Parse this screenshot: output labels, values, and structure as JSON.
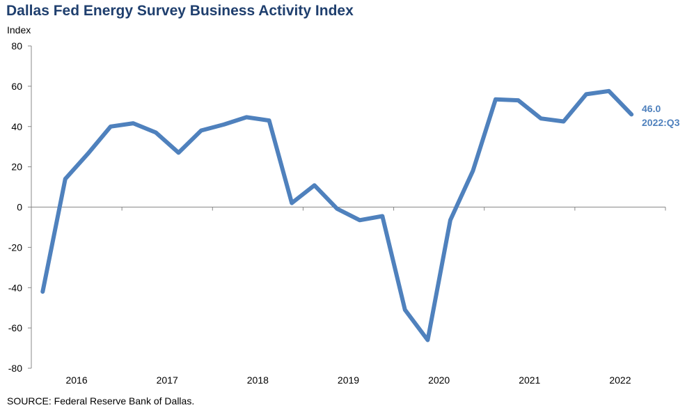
{
  "chart_data": {
    "type": "line",
    "title": "Dallas Fed Energy Survey Business Activity Index",
    "ylabel": "Index",
    "source": "SOURCE:  Federal Reserve  Bank of Dallas.",
    "ylim": [
      -80,
      80
    ],
    "yticks": [
      80,
      60,
      40,
      20,
      0,
      -20,
      -40,
      -60,
      -80
    ],
    "year_labels": [
      "2016",
      "2017",
      "2018",
      "2019",
      "2020",
      "2021",
      "2022"
    ],
    "x": [
      "2016:Q1",
      "2016:Q2",
      "2016:Q3",
      "2016:Q4",
      "2017:Q1",
      "2017:Q2",
      "2017:Q3",
      "2017:Q4",
      "2018:Q1",
      "2018:Q2",
      "2018:Q3",
      "2018:Q4",
      "2019:Q1",
      "2019:Q2",
      "2019:Q3",
      "2019:Q4",
      "2020:Q1",
      "2020:Q2",
      "2020:Q3",
      "2020:Q4",
      "2021:Q1",
      "2021:Q2",
      "2021:Q3",
      "2021:Q4",
      "2022:Q1",
      "2022:Q2",
      "2022:Q3"
    ],
    "values": [
      -42.0,
      14.0,
      26.5,
      40.0,
      41.6,
      37.0,
      27.0,
      38.0,
      41.0,
      44.6,
      43.0,
      2.0,
      10.8,
      -0.8,
      -6.5,
      -4.5,
      -51.0,
      -66.0,
      -6.5,
      18.0,
      53.5,
      53.0,
      44.0,
      42.5,
      56.0,
      57.6,
      46.0
    ],
    "grid": false,
    "line_color": "#4f81bd",
    "annotation": {
      "value": "46.0",
      "period": "2022:Q3"
    }
  }
}
